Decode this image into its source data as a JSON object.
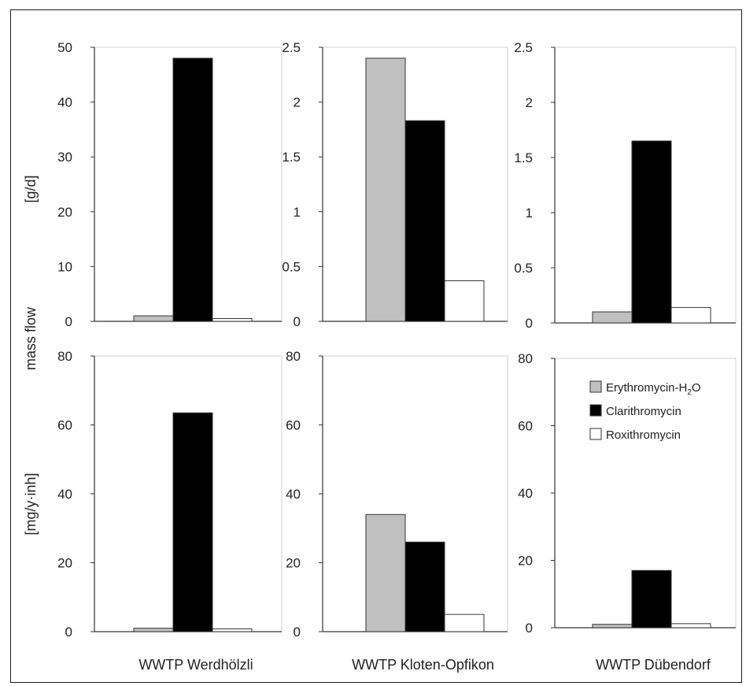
{
  "legend": [
    {
      "label": "Erythromycin-H",
      "sub": "2",
      "suffix": "O",
      "color": "#c0c0c0"
    },
    {
      "label": "Clarithromycin",
      "color": "#000000"
    },
    {
      "label": "Roxithromycin",
      "color": "#ffffff"
    }
  ],
  "y_labels": {
    "shared": "mass flow",
    "top_unit": "[g/d]",
    "bottom_unit": "[mg/y·inh]"
  },
  "chart_data": [
    {
      "type": "bar",
      "panel": "WWTP Werdhölzli – mass flow",
      "xlabel": "",
      "ylabel": "mass flow [g/d]",
      "ylim": [
        0,
        50
      ],
      "yticks": [
        "0",
        "10",
        "20",
        "30",
        "40",
        "50"
      ],
      "categories": [
        "Erythromycin-H2O",
        "Clarithromycin",
        "Roxithromycin"
      ],
      "values": [
        1,
        48,
        0.5
      ],
      "colors": [
        "#c0c0c0",
        "#000000",
        "#ffffff"
      ]
    },
    {
      "type": "bar",
      "panel": "WWTP Kloten-Opfikon – mass flow",
      "xlabel": "",
      "ylabel": "mass flow [g/d]",
      "ylim": [
        0,
        2.5
      ],
      "yticks": [
        "0",
        "0.5",
        "1",
        "1.5",
        "2",
        "2.5"
      ],
      "categories": [
        "Erythromycin-H2O",
        "Clarithromycin",
        "Roxithromycin"
      ],
      "values": [
        2.4,
        1.83,
        0.37
      ],
      "colors": [
        "#c0c0c0",
        "#000000",
        "#ffffff"
      ]
    },
    {
      "type": "bar",
      "panel": "WWTP Dübendorf – mass flow",
      "xlabel": "",
      "ylabel": "mass flow [g/d]",
      "ylim": [
        0,
        2.5
      ],
      "yticks": [
        "0",
        "0.5",
        "1",
        "1.5",
        "2",
        "2.5"
      ],
      "categories": [
        "Erythromycin-H2O",
        "Clarithromycin",
        "Roxithromycin"
      ],
      "values": [
        0.1,
        1.65,
        0.14
      ],
      "colors": [
        "#c0c0c0",
        "#000000",
        "#ffffff"
      ]
    },
    {
      "type": "bar",
      "panel": "WWTP Werdhölzli – per inhabitant",
      "xlabel": "WWTP Werdhölzli",
      "ylabel": "mass flow [mg/y·inh]",
      "ylim": [
        0,
        80
      ],
      "yticks": [
        "0",
        "20",
        "40",
        "60",
        "80"
      ],
      "categories": [
        "Erythromycin-H2O",
        "Clarithromycin",
        "Roxithromycin"
      ],
      "values": [
        1,
        63.5,
        0.8
      ],
      "colors": [
        "#c0c0c0",
        "#000000",
        "#ffffff"
      ]
    },
    {
      "type": "bar",
      "panel": "WWTP Kloten-Opfikon – per inhabitant",
      "xlabel": "WWTP Kloten-Opfikon",
      "ylabel": "mass flow [mg/y·inh]",
      "ylim": [
        0,
        80
      ],
      "yticks": [
        "0",
        "20",
        "40",
        "60",
        "80"
      ],
      "categories": [
        "Erythromycin-H2O",
        "Clarithromycin",
        "Roxithromycin"
      ],
      "values": [
        34,
        26,
        5
      ],
      "colors": [
        "#c0c0c0",
        "#000000",
        "#ffffff"
      ]
    },
    {
      "type": "bar",
      "panel": "WWTP Dübendorf – per inhabitant",
      "xlabel": "WWTP Dübendorf",
      "ylabel": "mass flow [mg/y·inh]",
      "ylim": [
        0,
        80
      ],
      "yticks": [
        "0",
        "20",
        "40",
        "60",
        "80"
      ],
      "categories": [
        "Erythromycin-H2O",
        "Clarithromycin",
        "Roxithromycin"
      ],
      "values": [
        1,
        17,
        1.2
      ],
      "colors": [
        "#c0c0c0",
        "#000000",
        "#ffffff"
      ]
    }
  ]
}
